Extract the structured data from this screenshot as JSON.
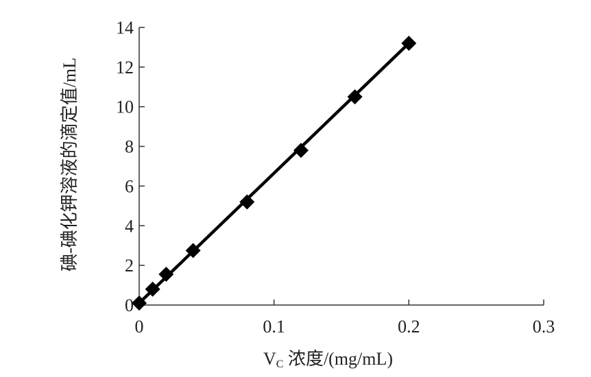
{
  "chart_data": {
    "type": "line",
    "title": "",
    "xlabel": "V",
    "xlabel_subscript": "C",
    "xlabel_rest": " 浓度/(mg/mL)",
    "ylabel": "碘-碘化钾溶液的滴定值/mL",
    "xlim": [
      0,
      0.3
    ],
    "ylim": [
      0,
      14
    ],
    "xticks": [
      0,
      0.1,
      0.2,
      0.3
    ],
    "xtick_labels": [
      "0",
      "0.1",
      "0.2",
      "0.3"
    ],
    "yticks": [
      0,
      2,
      4,
      6,
      8,
      10,
      12,
      14
    ],
    "ytick_labels": [
      "0",
      "2",
      "4",
      "6",
      "8",
      "10",
      "12",
      "14"
    ],
    "grid": false,
    "legend": "none",
    "series": [
      {
        "x": [
          0,
          0.01,
          0.02,
          0.04,
          0.08,
          0.12,
          0.16,
          0.2
        ],
        "y": [
          0.1,
          0.8,
          1.55,
          2.75,
          5.2,
          7.8,
          10.5,
          13.2
        ],
        "marker": "diamond",
        "color": "#000000"
      }
    ],
    "fit_line": {
      "x": [
        0,
        0.2
      ],
      "y": [
        0.1,
        13.2
      ],
      "color": "#000000"
    }
  }
}
